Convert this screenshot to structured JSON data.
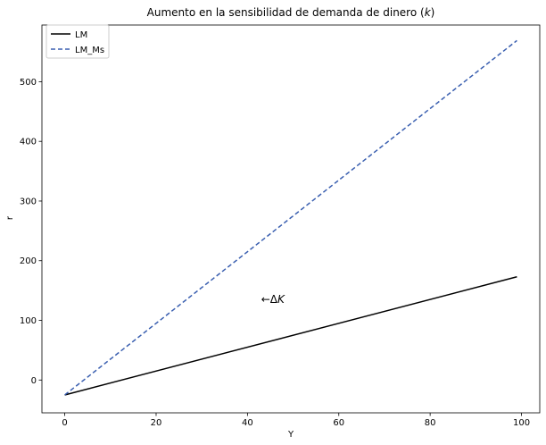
{
  "chart_data": {
    "type": "line",
    "title": "Aumento en la sensibilidad de demanda de dinero (k)",
    "title_text": "Aumento en la sensibilidad de demanda de dinero (",
    "title_var": "k",
    "title_end": ")",
    "xlabel": "Y",
    "ylabel": "r",
    "xlim": [
      -5,
      104
    ],
    "ylim": [
      -55,
      595
    ],
    "xticks": [
      0,
      20,
      40,
      60,
      80,
      100
    ],
    "yticks": [
      0,
      100,
      200,
      300,
      400,
      500
    ],
    "grid": false,
    "legend_position": "top-left",
    "series": [
      {
        "name": "LM",
        "color": "#000000",
        "style": "solid",
        "x": [
          0,
          99
        ],
        "y": [
          -25,
          173
        ]
      },
      {
        "name": "LM_Ms",
        "color": "#3a5fb0",
        "style": "dashed",
        "x": [
          0,
          99
        ],
        "y": [
          -25,
          569
        ]
      }
    ],
    "annotations": [
      {
        "arrow": "←",
        "symbol": "Δ",
        "var": "K",
        "x": 43,
        "y": 135
      }
    ]
  }
}
